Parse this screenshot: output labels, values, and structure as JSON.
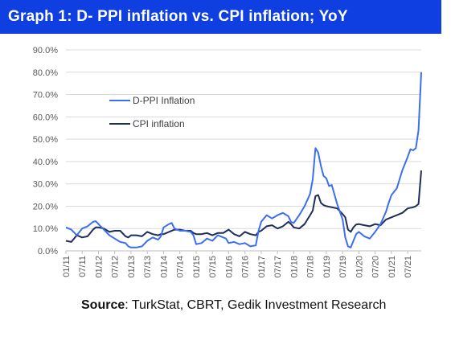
{
  "header": {
    "title": "Graph 1: D- PPI inflation vs. CPI inflation; YoY"
  },
  "source": {
    "label": "Source",
    "text": ": TurkStat, CBRT, Gedik Investment Research"
  },
  "colors": {
    "title_bg": "#0f3fe0",
    "dppi": "#3b6ef0",
    "cpi": "#1f2d5a",
    "grid": "#d9d9d9"
  },
  "chart_data": {
    "type": "line",
    "title": "Graph 1: D- PPI inflation vs. CPI inflation; YoY",
    "xlabel": "",
    "ylabel": "",
    "ylim": [
      0,
      90
    ],
    "y_ticks": [
      "0.0%",
      "10.0%",
      "20.0%",
      "30.0%",
      "40.0%",
      "50.0%",
      "60.0%",
      "70.0%",
      "80.0%",
      "90.0%"
    ],
    "x_ticks": [
      "01/11",
      "07/11",
      "01/12",
      "07/12",
      "01/13",
      "07/13",
      "01/14",
      "07/14",
      "01/15",
      "07/15",
      "01/16",
      "07/16",
      "01/17",
      "07/17",
      "01/18",
      "07/18",
      "01/19",
      "07/19",
      "01/20",
      "07/20",
      "01/21",
      "07/21"
    ],
    "grid": "horizontal",
    "legend_position": "upper-left",
    "series": [
      {
        "name": "D-PPI Inflation",
        "color": "#3b6ef0",
        "points": [
          [
            "01/11",
            10.5
          ],
          [
            "03/11",
            9.5
          ],
          [
            "05/11",
            7.0
          ],
          [
            "07/11",
            10.0
          ],
          [
            "09/11",
            11.0
          ],
          [
            "11/11",
            13.0
          ],
          [
            "12/11",
            13.3
          ],
          [
            "01/12",
            12.0
          ],
          [
            "03/12",
            9.5
          ],
          [
            "05/12",
            7.0
          ],
          [
            "07/12",
            5.5
          ],
          [
            "09/12",
            4.0
          ],
          [
            "11/12",
            3.5
          ],
          [
            "12/12",
            2.0
          ],
          [
            "01/13",
            1.5
          ],
          [
            "03/13",
            1.5
          ],
          [
            "05/13",
            2.0
          ],
          [
            "07/13",
            4.5
          ],
          [
            "09/13",
            6.0
          ],
          [
            "11/13",
            5.0
          ],
          [
            "12/13",
            6.5
          ],
          [
            "01/14",
            10.5
          ],
          [
            "03/14",
            12.0
          ],
          [
            "04/14",
            12.5
          ],
          [
            "05/14",
            10.0
          ],
          [
            "07/14",
            9.0
          ],
          [
            "09/14",
            9.0
          ],
          [
            "11/14",
            8.5
          ],
          [
            "12/14",
            7.0
          ],
          [
            "01/15",
            3.0
          ],
          [
            "03/15",
            3.5
          ],
          [
            "05/15",
            5.5
          ],
          [
            "07/15",
            4.5
          ],
          [
            "09/15",
            7.0
          ],
          [
            "11/15",
            6.0
          ],
          [
            "12/15",
            5.5
          ],
          [
            "01/16",
            3.5
          ],
          [
            "03/16",
            4.0
          ],
          [
            "05/16",
            3.0
          ],
          [
            "07/16",
            3.5
          ],
          [
            "09/16",
            2.0
          ],
          [
            "11/16",
            2.5
          ],
          [
            "12/16",
            9.0
          ],
          [
            "01/17",
            13.0
          ],
          [
            "03/17",
            16.0
          ],
          [
            "05/17",
            14.5
          ],
          [
            "07/17",
            16.0
          ],
          [
            "09/17",
            17.0
          ],
          [
            "11/17",
            15.5
          ],
          [
            "12/17",
            13.0
          ],
          [
            "01/18",
            12.5
          ],
          [
            "03/18",
            16.0
          ],
          [
            "05/18",
            20.0
          ],
          [
            "07/18",
            25.5
          ],
          [
            "08/18",
            32.0
          ],
          [
            "09/18",
            46.0
          ],
          [
            "10/18",
            44.0
          ],
          [
            "11/18",
            38.0
          ],
          [
            "12/18",
            33.5
          ],
          [
            "01/19",
            32.5
          ],
          [
            "02/19",
            29.0
          ],
          [
            "03/19",
            29.5
          ],
          [
            "05/19",
            21.0
          ],
          [
            "07/19",
            14.0
          ],
          [
            "08/19",
            6.0
          ],
          [
            "09/19",
            2.0
          ],
          [
            "10/19",
            1.5
          ],
          [
            "11/19",
            4.5
          ],
          [
            "12/19",
            7.5
          ],
          [
            "01/20",
            8.5
          ],
          [
            "03/20",
            6.5
          ],
          [
            "05/20",
            5.5
          ],
          [
            "07/20",
            8.5
          ],
          [
            "09/20",
            12.0
          ],
          [
            "11/20",
            17.5
          ],
          [
            "12/20",
            21.5
          ],
          [
            "01/21",
            25.0
          ],
          [
            "03/21",
            28.0
          ],
          [
            "05/21",
            36.0
          ],
          [
            "07/21",
            42.0
          ],
          [
            "08/21",
            45.5
          ],
          [
            "09/21",
            45.0
          ],
          [
            "10/21",
            46.0
          ],
          [
            "11/21",
            54.0
          ],
          [
            "12/21",
            80.0
          ]
        ]
      },
      {
        "name": "CPI inflation",
        "color": "#1f2d5a",
        "points": [
          [
            "01/11",
            4.5
          ],
          [
            "03/11",
            4.0
          ],
          [
            "05/11",
            7.0
          ],
          [
            "07/11",
            6.0
          ],
          [
            "09/11",
            6.5
          ],
          [
            "11/11",
            9.5
          ],
          [
            "12/11",
            10.5
          ],
          [
            "01/12",
            10.5
          ],
          [
            "03/12",
            10.0
          ],
          [
            "05/12",
            8.5
          ],
          [
            "07/12",
            9.0
          ],
          [
            "09/12",
            9.0
          ],
          [
            "11/12",
            6.5
          ],
          [
            "12/12",
            6.0
          ],
          [
            "01/13",
            7.0
          ],
          [
            "03/13",
            7.0
          ],
          [
            "05/13",
            6.5
          ],
          [
            "07/13",
            8.5
          ],
          [
            "09/13",
            7.5
          ],
          [
            "11/13",
            7.0
          ],
          [
            "12/13",
            7.5
          ],
          [
            "01/14",
            7.5
          ],
          [
            "03/14",
            8.5
          ],
          [
            "05/14",
            9.5
          ],
          [
            "07/14",
            9.5
          ],
          [
            "09/14",
            9.0
          ],
          [
            "11/14",
            9.0
          ],
          [
            "12/14",
            8.0
          ],
          [
            "01/15",
            7.5
          ],
          [
            "03/15",
            7.5
          ],
          [
            "05/15",
            8.0
          ],
          [
            "07/15",
            7.0
          ],
          [
            "09/15",
            8.0
          ],
          [
            "11/15",
            8.0
          ],
          [
            "12/15",
            8.8
          ],
          [
            "01/16",
            9.5
          ],
          [
            "03/16",
            7.5
          ],
          [
            "05/16",
            6.5
          ],
          [
            "07/16",
            8.5
          ],
          [
            "09/16",
            7.5
          ],
          [
            "11/16",
            7.0
          ],
          [
            "12/16",
            8.5
          ],
          [
            "01/17",
            9.0
          ],
          [
            "03/17",
            11.0
          ],
          [
            "05/17",
            11.5
          ],
          [
            "07/17",
            10.0
          ],
          [
            "09/17",
            11.0
          ],
          [
            "11/17",
            13.0
          ],
          [
            "12/17",
            12.0
          ],
          [
            "01/18",
            10.5
          ],
          [
            "03/18",
            10.0
          ],
          [
            "05/18",
            12.0
          ],
          [
            "07/18",
            16.0
          ],
          [
            "08/18",
            18.0
          ],
          [
            "09/18",
            24.5
          ],
          [
            "10/18",
            25.0
          ],
          [
            "11/18",
            21.5
          ],
          [
            "12/18",
            20.5
          ],
          [
            "01/19",
            20.0
          ],
          [
            "03/19",
            19.5
          ],
          [
            "05/19",
            19.0
          ],
          [
            "07/19",
            16.5
          ],
          [
            "08/19",
            15.0
          ],
          [
            "09/19",
            9.5
          ],
          [
            "10/19",
            8.5
          ],
          [
            "11/19",
            10.5
          ],
          [
            "12/19",
            11.8
          ],
          [
            "01/20",
            12.0
          ],
          [
            "03/20",
            11.5
          ],
          [
            "05/20",
            11.0
          ],
          [
            "07/20",
            12.0
          ],
          [
            "09/20",
            11.5
          ],
          [
            "11/20",
            14.0
          ],
          [
            "12/20",
            14.5
          ],
          [
            "01/21",
            15.0
          ],
          [
            "03/21",
            16.0
          ],
          [
            "05/21",
            17.0
          ],
          [
            "07/21",
            19.0
          ],
          [
            "09/21",
            19.5
          ],
          [
            "10/21",
            20.0
          ],
          [
            "11/21",
            21.0
          ],
          [
            "12/21",
            36.0
          ]
        ]
      }
    ]
  }
}
